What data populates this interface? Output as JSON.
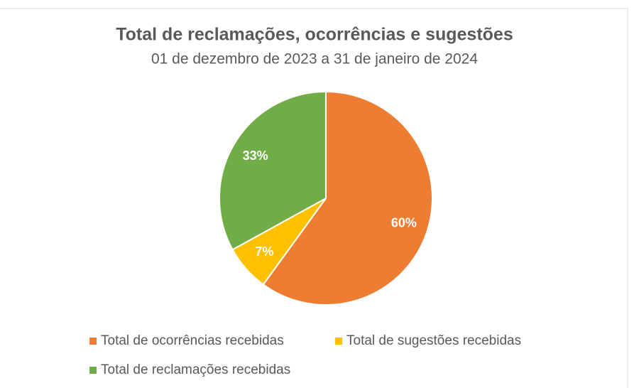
{
  "chart_data": {
    "type": "pie",
    "title": "Total de reclamações, ocorrências e sugestões",
    "subtitle": "01 de dezembro de 2023 a 31 de janeiro de 2024",
    "categories": [
      "Total de ocorrências recebidas",
      "Total de sugestões recebidas",
      "Total de reclamações recebidas"
    ],
    "values": [
      60,
      7,
      33
    ],
    "value_labels": [
      "60%",
      "7%",
      "33%"
    ],
    "colors": [
      "#ED7D31",
      "#FFC000",
      "#70AD47"
    ],
    "legend": "bottom"
  }
}
